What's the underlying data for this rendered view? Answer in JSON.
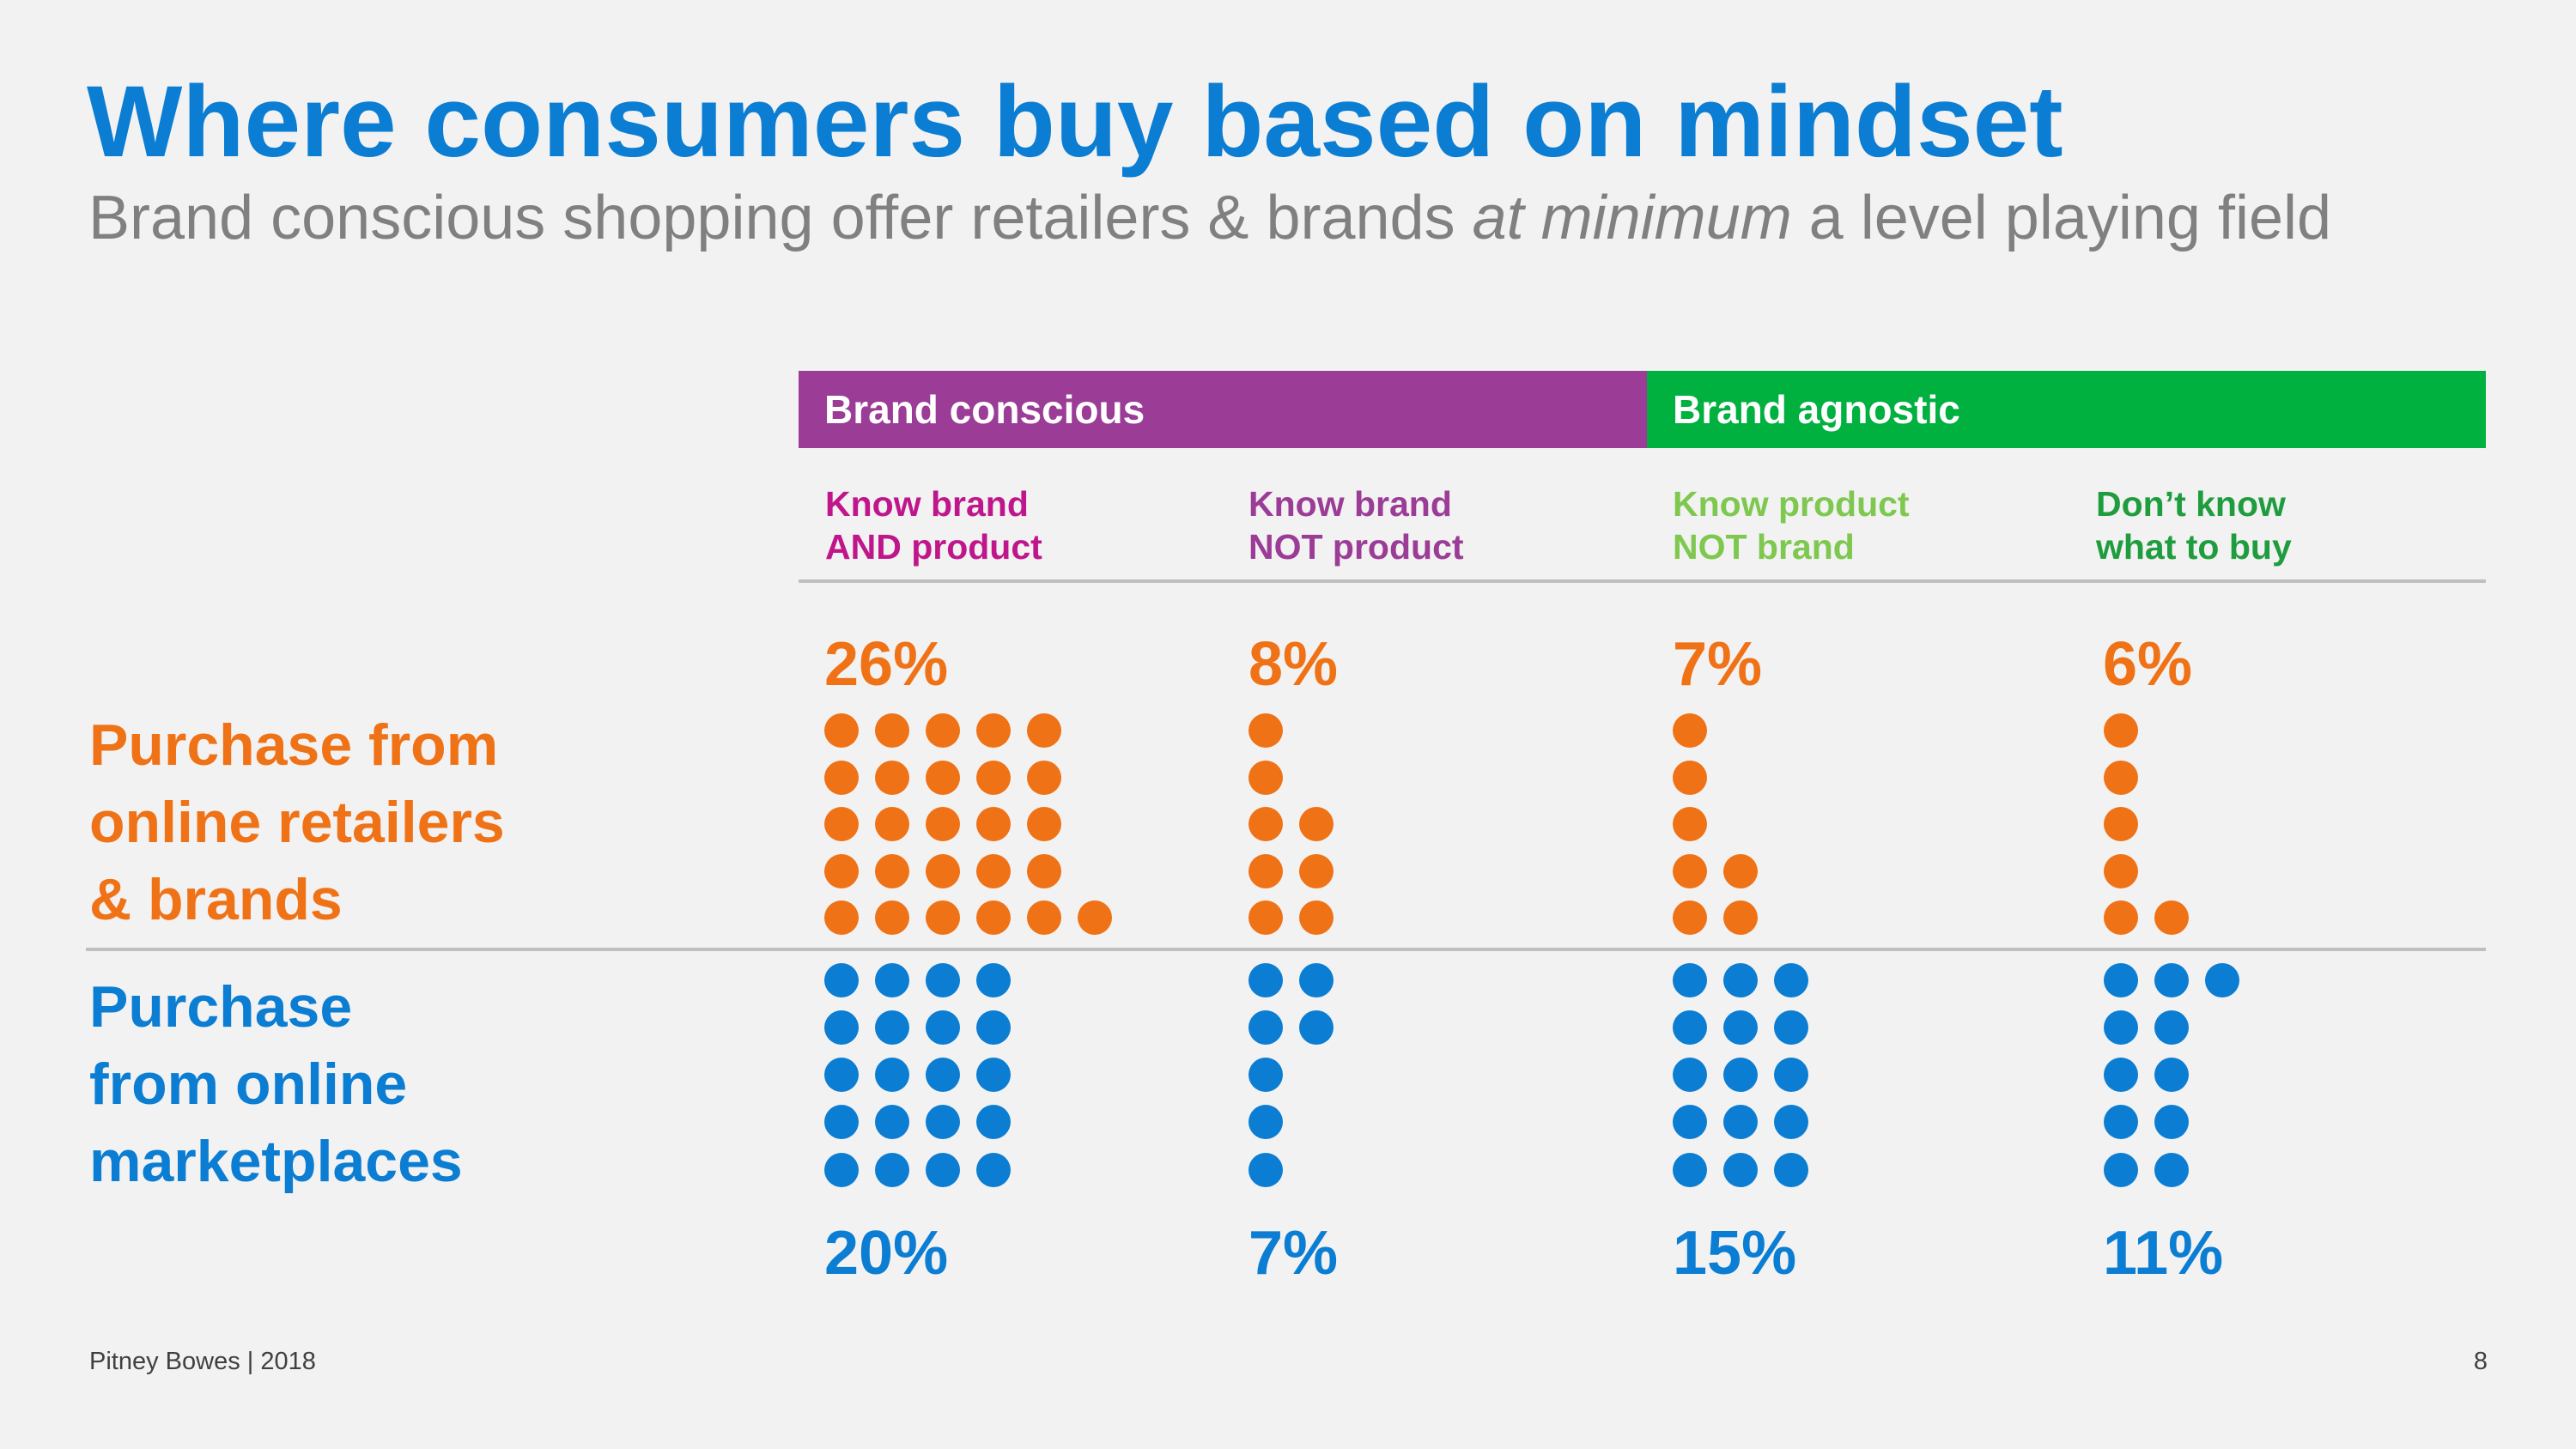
{
  "title": "Where consumers buy based on mindset",
  "subtitle": {
    "before": "Brand conscious shopping offer retailers & brands ",
    "italic": "at minimum",
    "after": " a level playing field"
  },
  "colors": {
    "title_blue": "#0b7dd3",
    "orange": "#f07216",
    "blue": "#0b7dd3",
    "purple": "#9b3c97",
    "green": "#00b140",
    "magenta": "#c0168b",
    "light_green": "#7ec850",
    "dark_green": "#1f9d3e"
  },
  "groups": [
    {
      "label": "Brand conscious",
      "color": "#9b3c97"
    },
    {
      "label": "Brand agnostic",
      "color": "#00b140"
    }
  ],
  "segments": [
    {
      "line1": "Know brand",
      "line2": "AND product",
      "color": "#c0168b"
    },
    {
      "line1": "Know brand",
      "line2": "NOT product",
      "color": "#9b3c97"
    },
    {
      "line1": "Know product",
      "line2": "NOT brand",
      "color": "#7ec850"
    },
    {
      "line1": "Don’t know",
      "line2": "what to buy",
      "color": "#1f9d3e"
    }
  ],
  "rows": {
    "retailers": [
      "Purchase from",
      "online retailers",
      "& brands"
    ],
    "marketplaces": [
      "Purchase",
      "from online",
      "marketplaces"
    ]
  },
  "chart_data": {
    "type": "dot-matrix",
    "title": "Where consumers buy based on mindset",
    "unit": "%",
    "dot_value": "1 dot = 1%",
    "categories": [
      "Know brand AND product",
      "Know brand NOT product",
      "Know product NOT brand",
      "Don’t know what to buy"
    ],
    "series": [
      {
        "name": "Purchase from online retailers & brands",
        "values": [
          26,
          8,
          7,
          6
        ],
        "labels": [
          "26%",
          "8%",
          "7%",
          "6%"
        ]
      },
      {
        "name": "Purchase from online marketplaces",
        "values": [
          20,
          7,
          15,
          11
        ],
        "labels": [
          "20%",
          "7%",
          "15%",
          "11%"
        ]
      }
    ]
  },
  "footer": "Pitney Bowes | 2018",
  "page_number": "8"
}
